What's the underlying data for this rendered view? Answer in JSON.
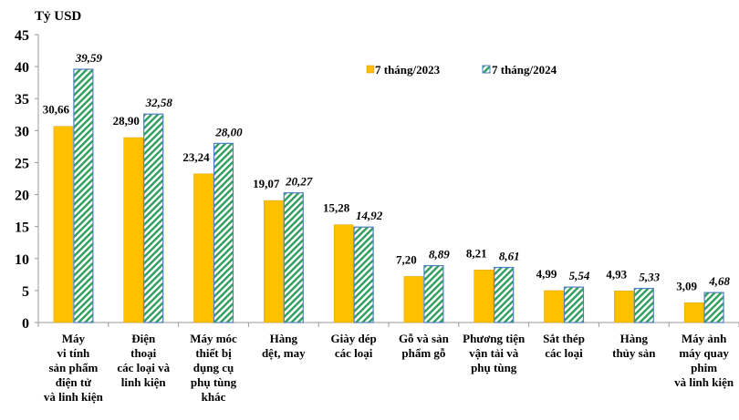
{
  "chart_data": {
    "type": "bar",
    "ylabel": "Tỷ USD",
    "ylim": [
      0,
      45
    ],
    "yticks": [
      0,
      5,
      10,
      15,
      20,
      25,
      30,
      35,
      40,
      45
    ],
    "grid": false,
    "legend_position": "top-right",
    "categories": [
      [
        "Máy",
        "vi tính",
        "sản phẩm",
        "điện tử",
        "và linh kiện"
      ],
      [
        "Điện",
        "thoại",
        "các loại và",
        "linh kiện"
      ],
      [
        "Máy móc",
        "thiết bị",
        "dụng cụ",
        "phụ tùng",
        "khác"
      ],
      [
        "Hàng",
        "dệt, may"
      ],
      [
        "Giày dép",
        "các loại"
      ],
      [
        "Gỗ và sản",
        "phẩm gỗ"
      ],
      [
        "Phương tiện",
        "vận tải và",
        "phụ tùng"
      ],
      [
        "Sắt thép",
        "các loại"
      ],
      [
        "Hàng",
        "thủy sản"
      ],
      [
        "Máy ảnh",
        "máy quay",
        "phim",
        "và linh kiện"
      ]
    ],
    "series": [
      {
        "name": "7 tháng/2023",
        "color": "#FFC000",
        "pattern": "solid",
        "values": [
          30.66,
          28.9,
          23.24,
          19.07,
          15.28,
          7.2,
          8.21,
          4.99,
          4.93,
          3.09
        ],
        "labels": [
          "30,66",
          "28,90",
          "23,24",
          "19,07",
          "15,28",
          "7,20",
          "8,21",
          "4,99",
          "4,93",
          "3,09"
        ]
      },
      {
        "name": "7 tháng/2024",
        "color": "#2E9E5B",
        "pattern": "diagonal-hatch",
        "border": "#4F81BD",
        "values": [
          39.59,
          32.58,
          28.0,
          20.27,
          14.92,
          8.89,
          8.61,
          5.54,
          5.33,
          4.68
        ],
        "labels": [
          "39,59",
          "32,58",
          "28,00",
          "20,27",
          "14,92",
          "8,89",
          "8,61",
          "5,54",
          "5,33",
          "4,68"
        ]
      }
    ]
  }
}
